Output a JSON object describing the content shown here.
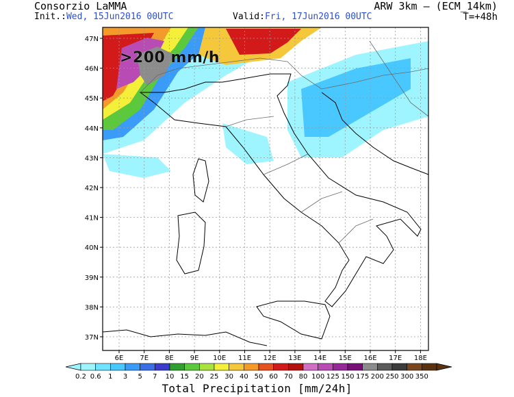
{
  "header": {
    "organization": "Consorzio LaMMA",
    "model": "ARW 3km – (ECM_14km)",
    "init_label": "Init.:",
    "init_value": "Wed, 15Jun2016 00UTC",
    "valid_label": "Valid:",
    "valid_value": "Fri, 17Jun2016 00UTC",
    "forecast_step": "T=+48h"
  },
  "annotation": ">200 mm/h",
  "axes": {
    "lat_labels": [
      "47N",
      "46N",
      "45N",
      "44N",
      "43N",
      "42N",
      "41N",
      "40N",
      "39N",
      "38N",
      "37N"
    ],
    "lon_labels": [
      "6E",
      "7E",
      "8E",
      "9E",
      "10E",
      "11E",
      "12E",
      "13E",
      "14E",
      "15E",
      "16E",
      "17E",
      "18E"
    ]
  },
  "colorbar": {
    "title": "Total Precipitation [mm/24h]",
    "ticks": [
      "0.2",
      "0.6",
      "1",
      "3",
      "5",
      "7",
      "10",
      "15",
      "20",
      "25",
      "30",
      "40",
      "50",
      "60",
      "70",
      "80",
      "100",
      "125",
      "150",
      "175",
      "200",
      "250",
      "300",
      "350"
    ],
    "colors": [
      "#9ff5ff",
      "#6fe3ff",
      "#49c8ff",
      "#3a9cf8",
      "#3a6fe8",
      "#3c3ccc",
      "#2fa02f",
      "#5cc83c",
      "#a8e23c",
      "#f4f03a",
      "#f4c83a",
      "#f49a2a",
      "#e8521e",
      "#d21a1a",
      "#b41010",
      "#d270c8",
      "#b84cb4",
      "#96289a",
      "#781078",
      "#8c8c8c",
      "#5a5a5a",
      "#3c3c3c",
      "#7a4620",
      "#5a3210"
    ]
  },
  "colors": {
    "map_background": "#ffffff",
    "grid": "#9a9a9a",
    "coastline": "#000000",
    "borders": "#6a6a6a"
  }
}
